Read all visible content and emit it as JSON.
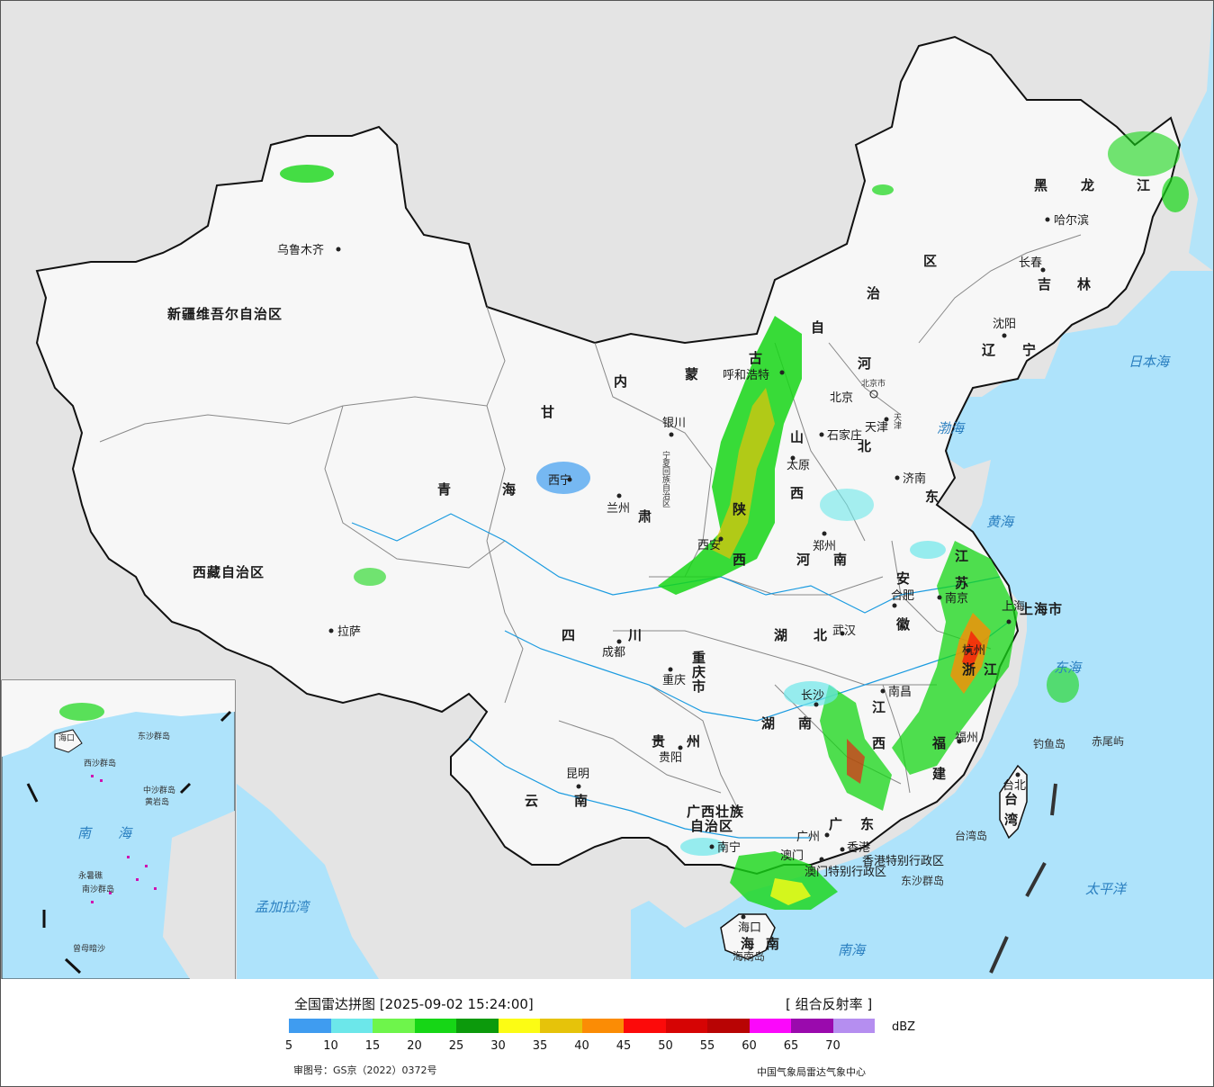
{
  "title": "全国雷达拼图 [2025-09-02 15:24:00]",
  "product": "[ 组合反射率 ]",
  "unit": "dBZ",
  "approval_number": "审图号：GS京（2022）0372号",
  "credit": "中国气象局雷达气象中心",
  "legend": {
    "colors": [
      "#3f9cf0",
      "#6ce7ea",
      "#6ef54b",
      "#16d616",
      "#0c9a0c",
      "#fcfc14",
      "#e6c30a",
      "#fb8c05",
      "#fc0a0a",
      "#d60404",
      "#b80404",
      "#fb08fb",
      "#9a0aad",
      "#b58ef0"
    ],
    "ticks": [
      "5",
      "10",
      "15",
      "20",
      "25",
      "30",
      "35",
      "40",
      "45",
      "50",
      "55",
      "60",
      "65",
      "70"
    ]
  },
  "map": {
    "colors": {
      "sea": "#aee3fb",
      "land": "#e4e4e4",
      "china": "#f7f7f7",
      "border": "#111111",
      "river": "#1b9be0"
    },
    "provinces": [
      "新疆维吾尔自治区",
      "西藏自治区",
      "青",
      "海",
      "甘",
      "肃",
      "内",
      "蒙",
      "古",
      "自",
      "治",
      "区",
      "黑",
      "龙",
      "江",
      "吉",
      "林",
      "辽",
      "宁",
      "河",
      "北",
      "山",
      "西",
      "东",
      "陕",
      "西",
      "宁夏回族自治区",
      "四",
      "川",
      "重庆市",
      "湖",
      "北",
      "湖",
      "南",
      "河",
      "南",
      "安",
      "徽",
      "江",
      "苏",
      "浙",
      "江",
      "江",
      "西",
      "福",
      "建",
      "贵",
      "州",
      "云",
      "南",
      "广西壮族",
      "自治区",
      "广",
      "东",
      "海",
      "南",
      "台",
      "湾",
      "上海市",
      "天津",
      "北京市",
      "香港特别行政区",
      "澳门特别行政区"
    ],
    "cities": [
      "乌鲁木齐",
      "拉萨",
      "西宁",
      "兰州",
      "银川",
      "呼和浩特",
      "太原",
      "北京",
      "石家庄",
      "天津",
      "济南",
      "郑州",
      "西安",
      "成都",
      "重庆",
      "贵阳",
      "昆明",
      "南宁",
      "广州",
      "香港",
      "澳门",
      "海口",
      "长沙",
      "武汉",
      "南昌",
      "福州",
      "合肥",
      "南京",
      "上海",
      "杭州",
      "沈阳",
      "长春",
      "哈尔滨",
      "台北"
    ],
    "seas": [
      "日本海",
      "渤海",
      "黄海",
      "东海",
      "南海",
      "太平洋",
      "孟加拉湾"
    ],
    "islands": [
      "钓鱼岛",
      "赤尾屿",
      "台湾岛",
      "东沙群岛",
      "海南岛"
    ],
    "inset_labels": [
      "南",
      "海",
      "南沙群岛",
      "中沙群岛",
      "黄岩岛",
      "西沙群岛",
      "东沙群岛",
      "曾母暗沙",
      "永暑礁",
      "海口"
    ]
  }
}
